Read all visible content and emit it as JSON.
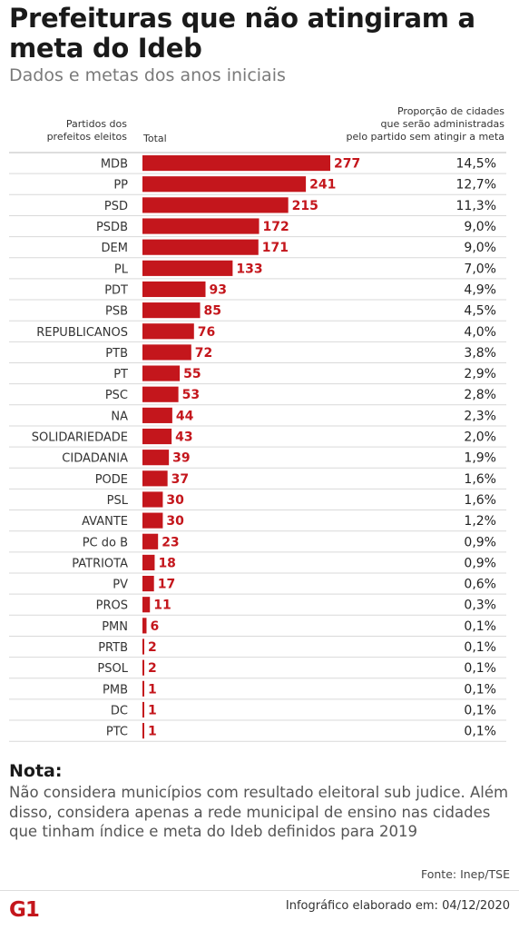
{
  "header": {
    "title": "Prefeituras que não atingiram a meta do Ideb",
    "subtitle": "Dados e metas dos anos iniciais",
    "col_party": [
      "Partidos dos",
      "prefeitos eleitos"
    ],
    "col_total": "Total",
    "col_proportion": [
      "Proporção de cidades",
      "que serão administradas",
      "pelo partido sem atingir a meta"
    ]
  },
  "colors": {
    "bar": "#c4161c",
    "value_text": "#c4161c",
    "rule": "#d9d9d9"
  },
  "chart_data": {
    "type": "bar",
    "orientation": "horizontal",
    "categories": [
      "MDB",
      "PP",
      "PSD",
      "PSDB",
      "DEM",
      "PL",
      "PDT",
      "PSB",
      "REPUBLICANOS",
      "PTB",
      "PT",
      "PSC",
      "NA",
      "SOLIDARIEDADE",
      "CIDADANIA",
      "PODE",
      "PSL",
      "AVANTE",
      "PC do B",
      "PATRIOTA",
      "PV",
      "PROS",
      "PMN",
      "PRTB",
      "PSOL",
      "PMB",
      "DC",
      "PTC"
    ],
    "values": [
      277,
      241,
      215,
      172,
      171,
      133,
      93,
      85,
      76,
      72,
      55,
      53,
      44,
      43,
      39,
      37,
      30,
      30,
      23,
      18,
      17,
      11,
      6,
      2,
      2,
      1,
      1,
      1
    ],
    "proportions": [
      "14,5%",
      "12,7%",
      "11,3%",
      "9,0%",
      "9,0%",
      "7,0%",
      "4,9%",
      "4,5%",
      "4,0%",
      "3,8%",
      "2,9%",
      "2,8%",
      "2,3%",
      "2,0%",
      "1,9%",
      "1,6%",
      "1,6%",
      "1,2%",
      "0,9%",
      "0,9%",
      "0,6%",
      "0,3%",
      "0,1%",
      "0,1%",
      "0,1%",
      "0,1%",
      "0,1%",
      "0,1%"
    ],
    "xlim": [
      0,
      277
    ],
    "grid": false,
    "legend": "none"
  },
  "note": {
    "title": "Nota:",
    "text": "Não considera municípios com resultado eleitoral sub judice. Além disso, considera apenas a rede municipal de ensino nas cidades que tinham índice e meta do Ideb definidos para 2019"
  },
  "footer": {
    "source": "Fonte: Inep/TSE",
    "logo_text": "G1",
    "credit": "Infográfico elaborado em: 04/12/2020"
  }
}
